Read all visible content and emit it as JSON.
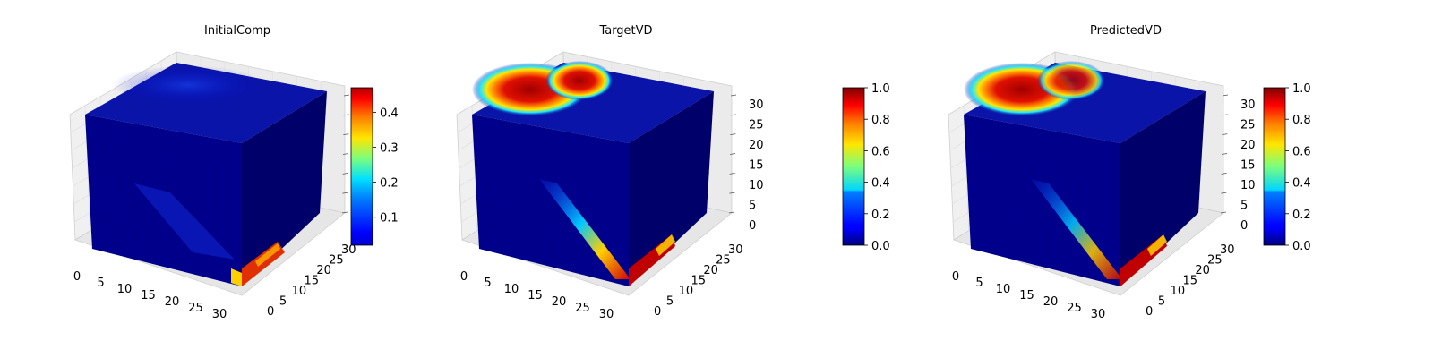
{
  "colors": {
    "pane_face": "#f0f0f0",
    "pane_edge": "#cfcfcf",
    "grid": "#e2e2e2",
    "cube_top": "#0a14a8",
    "cube_front": "#00008a",
    "cube_right": "#00006a"
  },
  "chart_data": [
    {
      "type": "heatmap",
      "title": "InitialComp",
      "axes_ticks": {
        "x": [
          "0",
          "5",
          "10",
          "15",
          "20",
          "25",
          "30"
        ],
        "y": [
          "0",
          "5",
          "10",
          "15",
          "20",
          "25",
          "30"
        ],
        "z": []
      },
      "colorbar": {
        "min": 0.02,
        "max": 0.47,
        "ticks": [
          "0.1",
          "0.2",
          "0.3",
          "0.4"
        ],
        "tick_values": [
          0.1,
          0.2,
          0.3,
          0.4
        ],
        "colormap": "jet"
      },
      "features": [
        {
          "face": "front",
          "region": "bottom-right corner",
          "level": 0.45
        },
        {
          "face": "front",
          "region": "diagonal band lower middle",
          "level": 0.08
        },
        {
          "face": "top",
          "region": "back area",
          "level": 0.07
        }
      ]
    },
    {
      "type": "heatmap",
      "title": "TargetVD",
      "axes_ticks": {
        "x": [
          "0",
          "5",
          "10",
          "15",
          "20",
          "25",
          "30"
        ],
        "y": [
          "0",
          "5",
          "10",
          "15",
          "20",
          "25",
          "30"
        ],
        "z": [
          "0",
          "5",
          "10",
          "15",
          "20",
          "25",
          "30"
        ]
      },
      "colorbar": {
        "min": 0.0,
        "max": 1.0,
        "ticks": [
          "0.0",
          "0.2",
          "0.4",
          "0.6",
          "0.8",
          "1.0"
        ],
        "tick_values": [
          0.0,
          0.2,
          0.4,
          0.6,
          0.8,
          1.0
        ],
        "colormap": "jet"
      },
      "features": [
        {
          "face": "top",
          "region": "back-left blob",
          "level": 1.0
        },
        {
          "face": "front",
          "region": "diagonal streak to bottom-right",
          "level": 1.0
        },
        {
          "face": "right",
          "region": "bottom strip",
          "level": 1.0
        }
      ]
    },
    {
      "type": "heatmap",
      "title": "PredictedVD",
      "axes_ticks": {
        "x": [
          "0",
          "5",
          "10",
          "15",
          "20",
          "25",
          "30"
        ],
        "y": [
          "0",
          "5",
          "10",
          "15",
          "20",
          "25",
          "30"
        ],
        "z": [
          "0",
          "5",
          "10",
          "15",
          "20",
          "25",
          "30"
        ]
      },
      "colorbar": {
        "min": 0.0,
        "max": 1.0,
        "ticks": [
          "0.0",
          "0.2",
          "0.4",
          "0.6",
          "0.8",
          "1.0"
        ],
        "tick_values": [
          0.0,
          0.2,
          0.4,
          0.6,
          0.8,
          1.0
        ],
        "colormap": "jet"
      },
      "features": [
        {
          "face": "top",
          "region": "back-left blob",
          "level": 0.95
        },
        {
          "face": "front",
          "region": "diagonal streak to bottom-right",
          "level": 0.85
        },
        {
          "face": "right",
          "region": "bottom strip",
          "level": 1.0
        }
      ]
    }
  ]
}
